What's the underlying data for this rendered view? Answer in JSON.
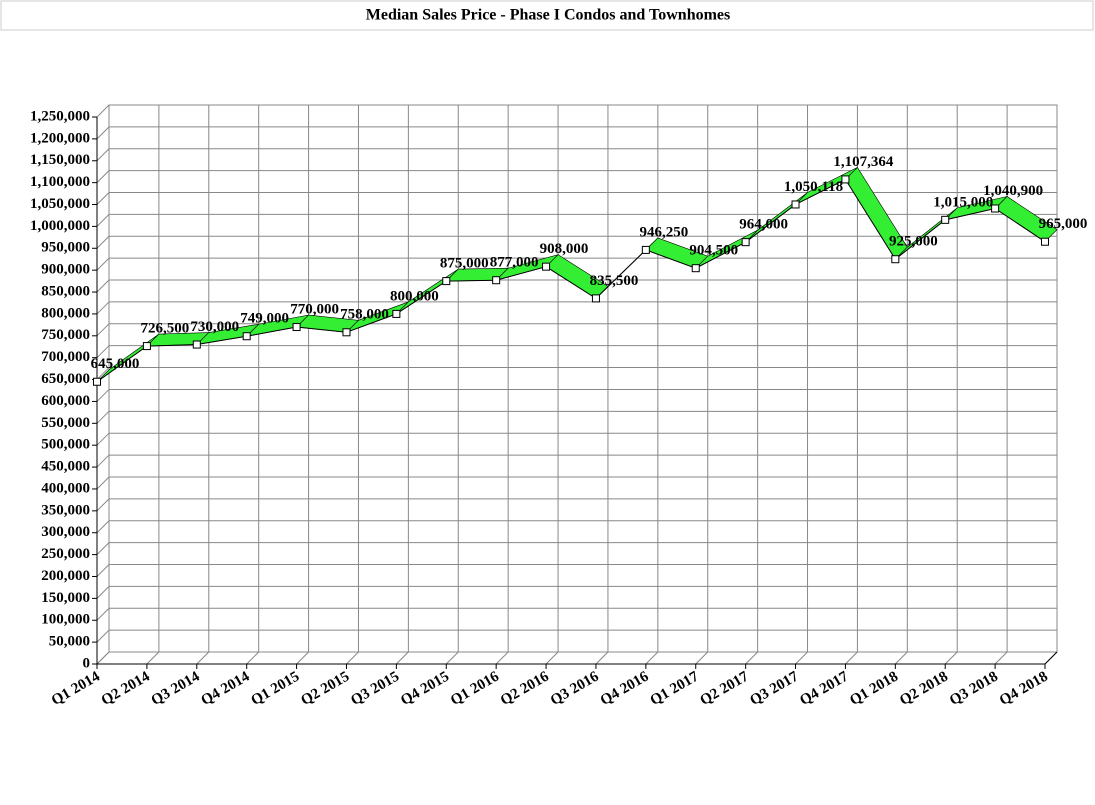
{
  "chart_data": {
    "type": "line",
    "title": "Median Sales Price -  Phase I Condos and Townhomes",
    "categories": [
      "Q1 2014",
      "Q2 2014",
      "Q3 2014",
      "Q4 2014",
      "Q1 2015",
      "Q2 2015",
      "Q3 2015",
      "Q4 2015",
      "Q1 2016",
      "Q2 2016",
      "Q3 2016",
      "Q4 2016",
      "Q1 2017",
      "Q2 2017",
      "Q3 2017",
      "Q4 2017",
      "Q1 2018",
      "Q2 2018",
      "Q3 2018",
      "Q4 2018"
    ],
    "series": [
      {
        "color": "#33ee33",
        "values": [
          645000,
          726500,
          730000,
          749000,
          770000,
          758000,
          800000,
          875000,
          877000,
          908000,
          835500,
          946250,
          904500,
          964000,
          1050118,
          1107364,
          925000,
          1015000,
          1040900,
          965000
        ],
        "value_labels": [
          "645,000",
          "726,500",
          "730,000",
          "749,000",
          "770,000",
          "758,000",
          "800,000",
          "875,000",
          "877,000",
          "908,000",
          "835,500",
          "946,250",
          "904,500",
          "964,000",
          "1,050,118",
          "1,107,364",
          "925,000",
          "1,015,000",
          "1,040,900",
          "965,000"
        ]
      }
    ],
    "ylim": [
      0,
      1250000
    ],
    "yticks": [
      0,
      {
        "value": 50000,
        "label": "50,000"
      },
      {
        "value": 100000,
        "label": "100,000"
      },
      {
        "value": 150000,
        "label": "150,000"
      },
      {
        "value": 200000,
        "label": "200,000"
      },
      {
        "value": 250000,
        "label": "250,000"
      },
      {
        "value": 300000,
        "label": "300,000"
      },
      {
        "value": 350000,
        "label": "350,000"
      },
      {
        "value": 400000,
        "label": "400,000"
      },
      {
        "value": 450000,
        "label": "450,000"
      },
      {
        "value": 500000,
        "label": "500,000"
      },
      {
        "value": 550000,
        "label": "550,000"
      },
      {
        "value": 600000,
        "label": "600,000"
      },
      {
        "value": 650000,
        "label": "650,000"
      },
      {
        "value": 700000,
        "label": "700,000"
      },
      {
        "value": 750000,
        "label": "750,000"
      },
      {
        "value": 800000,
        "label": "800,000"
      },
      {
        "value": 850000,
        "label": "850,000"
      },
      {
        "value": 900000,
        "label": "900,000"
      },
      {
        "value": 950000,
        "label": "950,000"
      },
      {
        "value": 1000000,
        "label": "1,000,000"
      },
      {
        "value": 1050000,
        "label": "1,050,000"
      },
      {
        "value": 1100000,
        "label": "1,100,000"
      },
      {
        "value": 1150000,
        "label": "1,150,000"
      },
      {
        "value": 1200000,
        "label": "1,200,000"
      },
      {
        "value": 1250000,
        "label": "1,250,000"
      }
    ],
    "grid": true
  }
}
